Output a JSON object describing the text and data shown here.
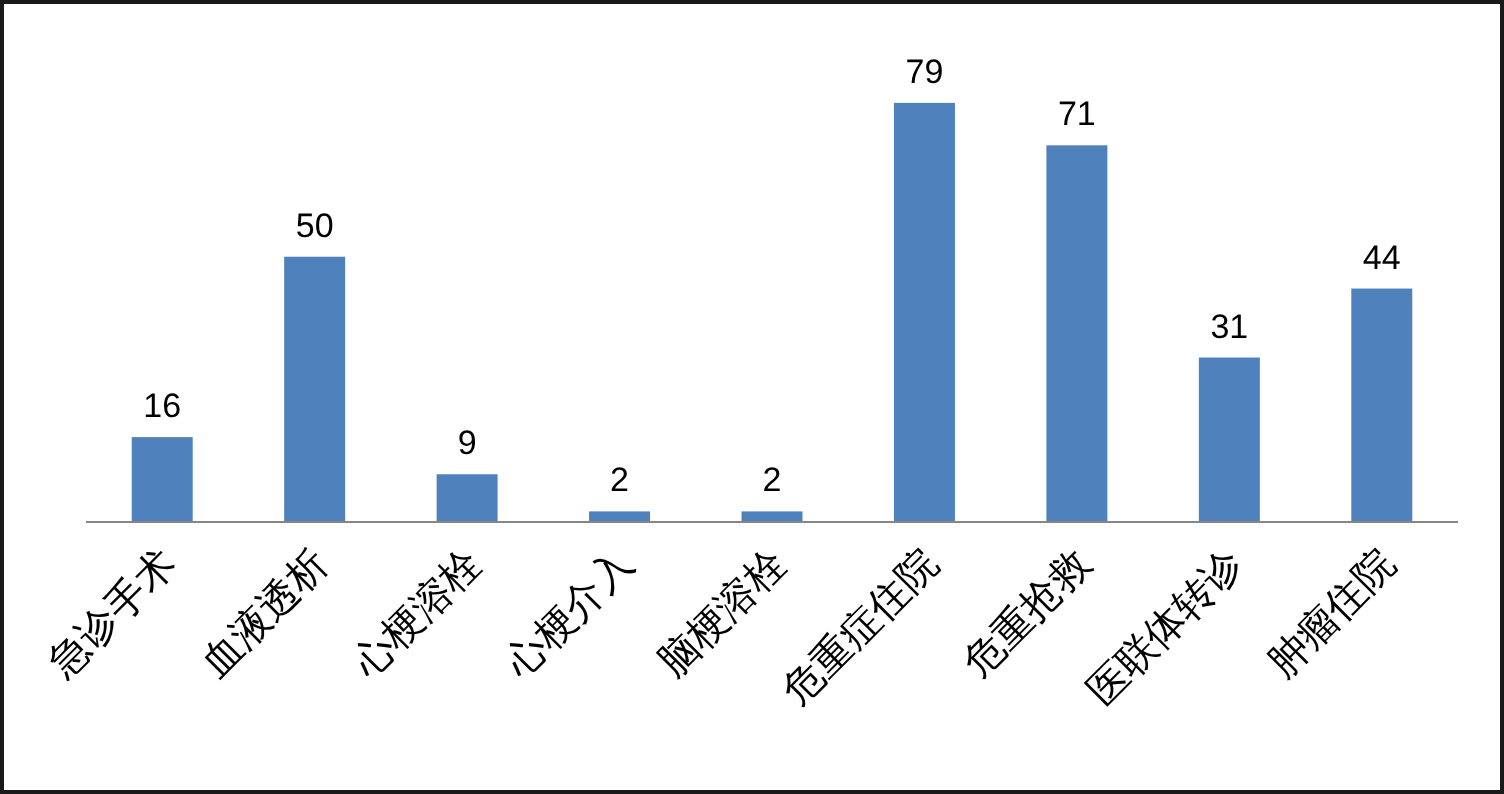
{
  "chart_data": {
    "type": "bar",
    "categories": [
      "急诊手术",
      "血液透析",
      "心梗溶栓",
      "心梗介入",
      "脑梗溶栓",
      "危重症住院",
      "危重抢救",
      "医联体转诊",
      "肿瘤住院"
    ],
    "values": [
      16,
      50,
      9,
      2,
      2,
      79,
      71,
      31,
      44
    ],
    "color": "#4f81bd",
    "data_labels": true
  }
}
